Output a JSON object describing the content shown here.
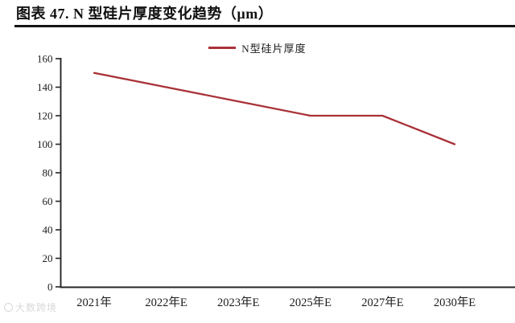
{
  "page": {
    "watermark": "大数跨境"
  },
  "chart_data": {
    "type": "line",
    "title": "图表 47. N 型硅片厚度变化趋势（μm）",
    "categories": [
      "2021年",
      "2022年E",
      "2023年E",
      "2025年E",
      "2027年E",
      "2030年E"
    ],
    "series": [
      {
        "name": "N型硅片厚度",
        "values": [
          150,
          140,
          130,
          120,
          120,
          100
        ]
      }
    ],
    "xlabel": "",
    "ylabel": "",
    "ylim": [
      0,
      160
    ],
    "ytick_step": 20,
    "yticks": [
      0,
      20,
      40,
      60,
      80,
      100,
      120,
      140,
      160
    ],
    "grid": false,
    "legend_position": "top-center",
    "line_color": "#a93238",
    "axis_color": "#262626",
    "text_color": "#1a1a1a"
  }
}
